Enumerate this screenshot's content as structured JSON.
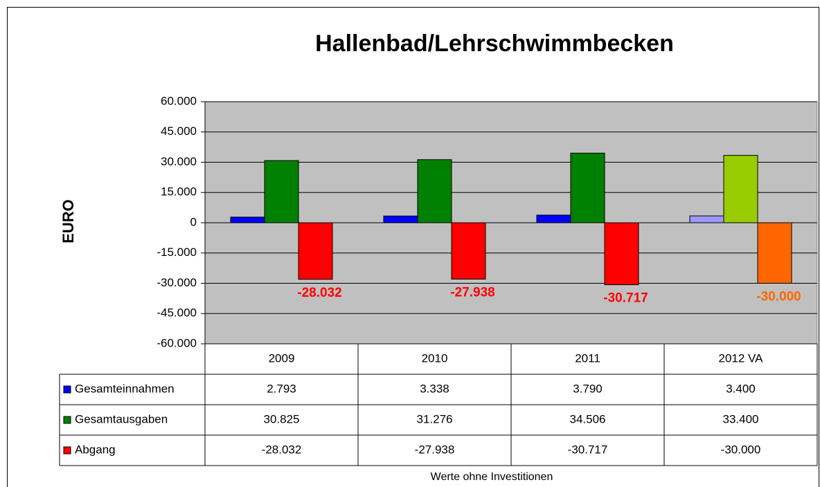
{
  "chart_data": {
    "type": "bar",
    "title": "Hallenbad/Lehrschwimmbecken",
    "y_label": "EURO",
    "footnote": "Werte ohne Investitionen",
    "categories": [
      "2009",
      "2010",
      "2011",
      "2012 VA"
    ],
    "series": [
      {
        "name": "Gesamteinnahmen",
        "color": "#0000ff",
        "colors": [
          "#0000ff",
          "#0000ff",
          "#0000ff",
          "#9999ff"
        ],
        "values": [
          2793,
          3338,
          3790,
          3400
        ],
        "value_labels": [
          "2.793",
          "3.338",
          "3.790",
          "3.400"
        ]
      },
      {
        "name": "Gesamtausgaben",
        "color": "#008000",
        "colors": [
          "#008000",
          "#008000",
          "#008000",
          "#99cc00"
        ],
        "values": [
          30825,
          31276,
          34506,
          33400
        ],
        "value_labels": [
          "30.825",
          "31.276",
          "34.506",
          "33.400"
        ]
      },
      {
        "name": "Abgang",
        "color": "#ff0000",
        "colors": [
          "#ff0000",
          "#ff0000",
          "#ff0000",
          "#ff6600"
        ],
        "values": [
          -28032,
          -27938,
          -30717,
          -30000
        ],
        "value_labels": [
          "-28.032",
          "-27.938",
          "-30.717",
          "-30.000"
        ],
        "data_labels": true
      }
    ],
    "ylim": [
      -60000,
      60000
    ],
    "yticks": [
      {
        "value": 60000,
        "label": "60.000"
      },
      {
        "value": 45000,
        "label": "45.000"
      },
      {
        "value": 30000,
        "label": "30.000"
      },
      {
        "value": 15000,
        "label": "15.000"
      },
      0,
      {
        "value": -15000,
        "label": "-15.000"
      },
      {
        "value": -30000,
        "label": "-30.000"
      },
      {
        "value": -45000,
        "label": "-45.000"
      },
      {
        "value": -60000,
        "label": "-60.000"
      }
    ],
    "grid": true,
    "data_table": true
  }
}
